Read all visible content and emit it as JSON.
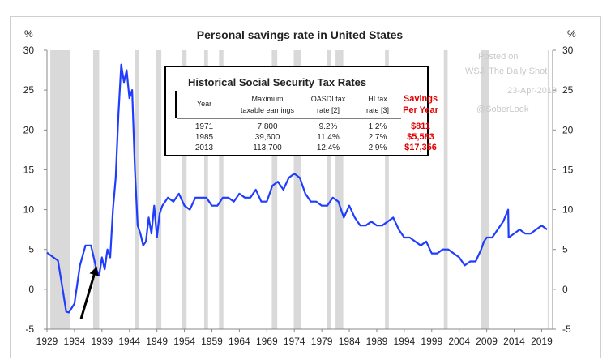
{
  "chart_data": {
    "type": "line",
    "title": "Personal savings rate in United States",
    "ylabel_left": "%",
    "ylabel_right": "%",
    "ylim": [
      -5,
      30
    ],
    "yticks": [
      -5,
      0,
      5,
      10,
      15,
      20,
      25,
      30
    ],
    "xlim": [
      1929,
      2021
    ],
    "xticks": [
      1929,
      1934,
      1939,
      1944,
      1949,
      1954,
      1959,
      1964,
      1969,
      1974,
      1979,
      1984,
      1989,
      1994,
      1999,
      2004,
      2009,
      2014,
      2019
    ],
    "xtick_labels": [
      "1929",
      "1934",
      "1939",
      "1944",
      "1949",
      "1954",
      "1959",
      "1964",
      "1969",
      "1974",
      "1979",
      "1984",
      "1989",
      "1994",
      "1999",
      "2004",
      "2009",
      "2014",
      "2019"
    ],
    "grid": false,
    "colors": {
      "line": "#1f3cff",
      "recession": "#d9d9d9",
      "arrow": "#000000"
    },
    "recessions": [
      [
        1929.6,
        1933.2
      ],
      [
        1937.4,
        1938.5
      ],
      [
        1945.0,
        1945.8
      ],
      [
        1948.9,
        1949.8
      ],
      [
        1953.5,
        1954.4
      ],
      [
        1957.6,
        1958.3
      ],
      [
        1960.3,
        1961.1
      ],
      [
        1969.9,
        1970.9
      ],
      [
        1973.9,
        1975.2
      ],
      [
        1980.0,
        1980.6
      ],
      [
        1981.5,
        1982.9
      ],
      [
        1990.5,
        1991.2
      ],
      [
        2001.2,
        2001.9
      ],
      [
        2007.9,
        2009.5
      ],
      [
        2020.1,
        2020.4
      ]
    ],
    "series": [
      {
        "x": [
          1929,
          1930,
          1931,
          1932,
          1932.5,
          1933,
          1934,
          1935,
          1936,
          1937,
          1938,
          1938.5,
          1939,
          1939.5,
          1940,
          1940.5,
          1941,
          1941.5,
          1942,
          1942.5,
          1943,
          1943.5,
          1944,
          1944.5,
          1945,
          1945.5,
          1946,
          1946.5,
          1947,
          1947.5,
          1948,
          1948.5,
          1949,
          1949.5,
          1950,
          1951,
          1952,
          1953,
          1954,
          1955,
          1956,
          1957,
          1958,
          1959,
          1960,
          1961,
          1962,
          1963,
          1964,
          1965,
          1966,
          1967,
          1968,
          1969,
          1970,
          1971,
          1972,
          1973,
          1974,
          1975,
          1976,
          1977,
          1978,
          1979,
          1980,
          1981,
          1982,
          1983,
          1984,
          1985,
          1986,
          1987,
          1988,
          1989,
          1990,
          1991,
          1992,
          1993,
          1994,
          1995,
          1996,
          1997,
          1998,
          1999,
          2000,
          2001,
          2002,
          2003,
          2004,
          2005,
          2006,
          2007,
          2008,
          2008.5,
          2009,
          2010,
          2011,
          2012,
          2012.9,
          2013,
          2014,
          2015,
          2016,
          2017,
          2018,
          2019,
          2020
        ],
        "values": [
          4.6,
          4.1,
          3.6,
          -0.6,
          -2.8,
          -2.9,
          -1.8,
          3.0,
          5.5,
          5.5,
          2.5,
          1.7,
          4.0,
          2.5,
          5.0,
          4.0,
          10.0,
          14.0,
          22.0,
          28.2,
          26.0,
          27.5,
          24.0,
          25.0,
          15.0,
          8.0,
          7.0,
          5.5,
          6.0,
          9.0,
          7.0,
          10.5,
          6.5,
          9.5,
          10.5,
          11.5,
          11.0,
          12.0,
          10.5,
          10.0,
          11.5,
          11.5,
          11.5,
          10.5,
          10.5,
          11.5,
          11.5,
          11.0,
          12.0,
          11.5,
          11.5,
          12.5,
          11.0,
          11.0,
          13.0,
          13.5,
          12.5,
          14.0,
          14.5,
          14.0,
          12.0,
          11.0,
          11.0,
          10.5,
          10.5,
          11.5,
          11.0,
          9.0,
          10.5,
          9.0,
          8.0,
          8.0,
          8.5,
          8.0,
          8.0,
          8.5,
          9.0,
          7.5,
          6.5,
          6.5,
          6.0,
          5.5,
          6.0,
          4.5,
          4.5,
          5.0,
          5.0,
          4.5,
          4.0,
          3.0,
          3.5,
          3.5,
          5.0,
          6.0,
          6.5,
          6.5,
          7.5,
          8.5,
          10.0,
          6.5,
          7.0,
          7.5,
          7.0,
          7.0,
          7.5,
          8.0,
          7.5
        ]
      }
    ],
    "annotation": {
      "x_from": 1935.2,
      "y_from": -3.7,
      "x_to": 1938.0,
      "y_to": 2.8
    }
  },
  "inset": {
    "title": "Historical Social Security Tax Rates",
    "columns": [
      "Year",
      "Maximum taxable earnings",
      "OASDI tax rate [2]",
      "HI tax rate [3]"
    ],
    "column_lines": [
      [
        "Year"
      ],
      [
        "Maximum",
        "taxable earnings"
      ],
      [
        "OASDI tax",
        "rate [2]"
      ],
      [
        "HI tax",
        "rate [3]"
      ]
    ],
    "rows": [
      [
        "1971",
        "7,800",
        "9.2%",
        "1.2%"
      ],
      [
        "1985",
        "39,600",
        "11.4%",
        "2.7%"
      ],
      [
        "2013",
        "113,700",
        "12.4%",
        "2.9%"
      ]
    ],
    "savings_header": [
      "Savings",
      "Per Year"
    ],
    "savings_values": [
      "$811",
      "$5,583",
      "$17,356"
    ]
  },
  "watermark": {
    "posted_on": "Posted on",
    "source": "WSJ: The Daily Shot",
    "date": "23-Apr-2019",
    "handle": "@SoberLook"
  }
}
